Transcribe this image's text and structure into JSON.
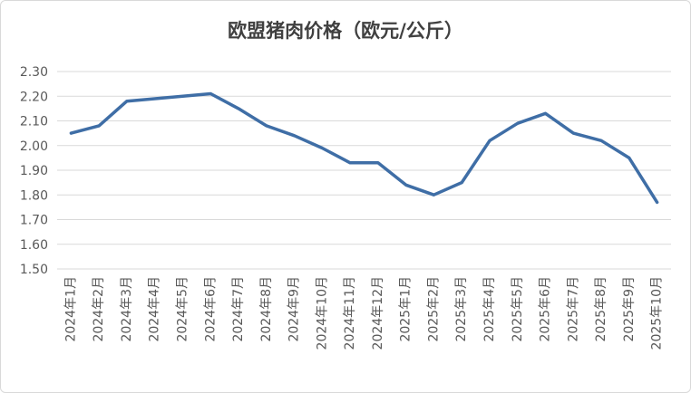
{
  "chart_data": {
    "type": "line",
    "title": "欧盟猪肉价格（欧元/公斤）",
    "xlabel": "",
    "ylabel": "",
    "ylim": [
      1.5,
      2.3
    ],
    "y_ticks": [
      "1.50",
      "1.60",
      "1.70",
      "1.80",
      "1.90",
      "2.00",
      "2.10",
      "2.20",
      "2.30"
    ],
    "grid": "horizontal",
    "legend": "none",
    "categories": [
      "2024年1月",
      "2024年2月",
      "2024年3月",
      "2024年4月",
      "2024年5月",
      "2024年6月",
      "2024年7月",
      "2024年8月",
      "2024年9月",
      "2024年10月",
      "2024年11月",
      "2024年12月",
      "2025年1月",
      "2025年2月",
      "2025年3月",
      "2025年4月",
      "2025年5月",
      "2025年6月",
      "2025年7月",
      "2025年8月",
      "2025年9月",
      "2025年10月"
    ],
    "series": [
      {
        "color": "#3f6ea6",
        "values": [
          2.05,
          2.08,
          2.18,
          2.19,
          2.2,
          2.21,
          2.15,
          2.08,
          2.04,
          1.99,
          1.93,
          1.93,
          1.84,
          1.8,
          1.85,
          2.02,
          2.09,
          2.13,
          2.05,
          2.02,
          1.95,
          1.77
        ]
      }
    ]
  }
}
